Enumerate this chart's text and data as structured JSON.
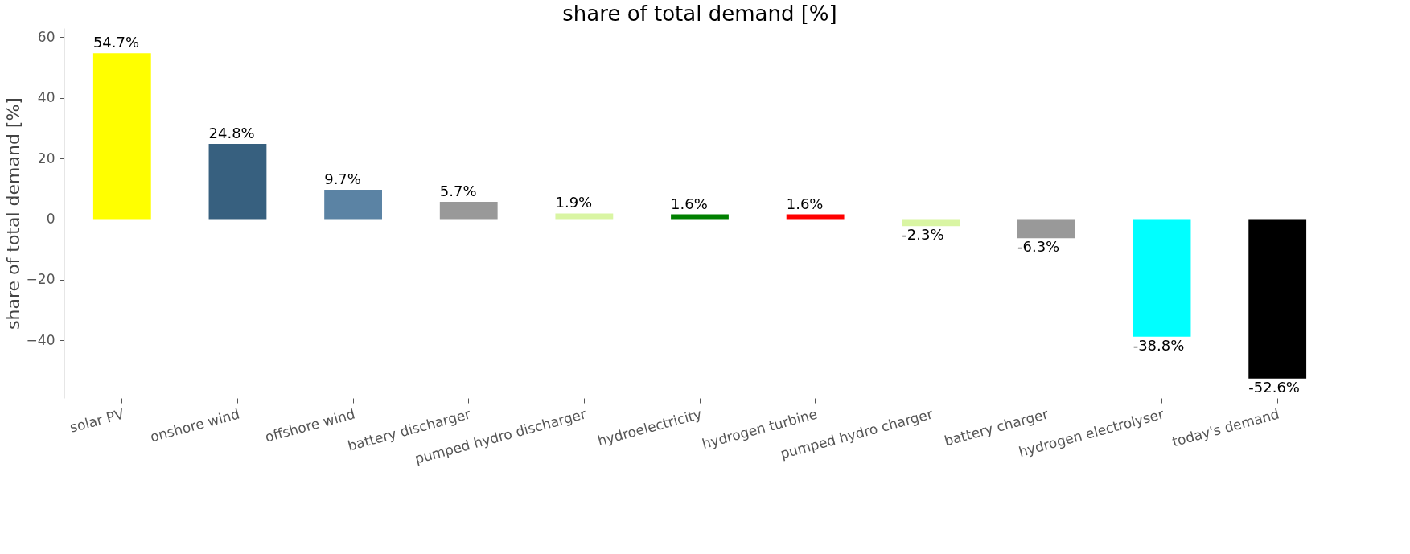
{
  "chart_data": {
    "type": "bar",
    "title": "share of total demand [%]",
    "ylabel": "share of total demand [%]",
    "categories": [
      "solar PV",
      "onshore wind",
      "offshore wind",
      "battery discharger",
      "pumped hydro discharger",
      "hydroelectricity",
      "hydrogen turbine",
      "pumped hydro charger",
      "battery charger",
      "hydrogen electrolyser",
      "today's demand"
    ],
    "values": [
      54.7,
      24.8,
      9.7,
      5.7,
      1.9,
      1.6,
      1.6,
      -2.3,
      -6.3,
      -38.8,
      -52.6
    ],
    "colors": [
      "#ffff00",
      "#37607f",
      "#5b83a4",
      "#999999",
      "#d9f5a3",
      "#008000",
      "#ff0000",
      "#d9f5a3",
      "#999999",
      "#00ffff",
      "#000000"
    ],
    "value_labels": [
      "54.7%",
      "24.8%",
      "9.7%",
      "5.7%",
      "1.9%",
      "1.6%",
      "1.6%",
      "-2.3%",
      "-6.3%",
      "-38.8%",
      "-52.6%"
    ],
    "ylim": [
      -59,
      63
    ],
    "yticks": [
      -40,
      -20,
      0,
      20,
      40,
      60
    ],
    "grid": false
  }
}
